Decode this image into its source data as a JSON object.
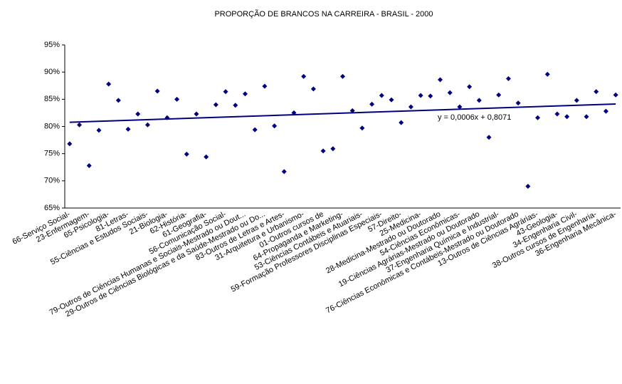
{
  "chart_data": {
    "type": "scatter",
    "title": "PROPORÇÃO DE BRANCOS NA CARREIRA - BRASIL - 2000",
    "categories": [
      "66-Serviço Social-",
      null,
      "23-Enfermagem-",
      null,
      "65-Psicologia-",
      null,
      "81-Letras-",
      null,
      "55-Ciências e Estudos Sociais-",
      null,
      "21-Biologia-",
      null,
      "62-História-",
      null,
      "61-Geografia-",
      null,
      "56-Comunicação Social-",
      null,
      "79-Outros de Ciências Humanas e Sociais-Mestrado ou Dout...",
      null,
      "29-Outros de Ciências Biológicas e da Saúde-Mestrado ou Do...",
      null,
      "83-Outros de Letras e Artes-",
      null,
      "31-Arquitetura e Urbanismo-",
      null,
      "01-Outros cursos de",
      null,
      "64-Propaganda e Marketing-",
      null,
      "53-Ciências Contábeis e Atuariais-",
      null,
      "59-Formação Professores Disciplinas Especiais-",
      null,
      "57-Direito-",
      null,
      "25-Medicina-",
      null,
      "28-Medicina-Mestrado ou Doutorado",
      null,
      "54-Ciências Econômicas-",
      null,
      "19-Ciências Agrárias-Mestrado ou Doutorado",
      null,
      "37-Engenharia Química e Industrial-",
      null,
      "76-Ciências Econômicas e Contábeis-Mestrado ou Doutorado",
      null,
      "13-Outros de Ciências Agrárias-",
      null,
      "43-Geologia-",
      null,
      "34-Engenharia Civil-",
      null,
      "38-Outros cursos de Engenharia-",
      null,
      "36-Engenharia Mecânica-"
    ],
    "values": [
      76.8,
      80.3,
      72.8,
      79.3,
      87.8,
      84.8,
      79.5,
      82.3,
      80.3,
      86.5,
      81.6,
      85.0,
      74.9,
      82.3,
      74.4,
      84.0,
      86.4,
      83.9,
      86.0,
      79.4,
      87.4,
      80.1,
      71.7,
      82.5,
      89.2,
      86.9,
      75.5,
      75.9,
      89.2,
      82.9,
      79.7,
      84.1,
      85.7,
      84.9,
      80.7,
      83.6,
      85.7,
      85.6,
      88.6,
      86.2,
      83.6,
      87.3,
      84.8,
      78.0,
      85.8,
      88.8,
      84.3,
      69.0,
      81.6,
      89.6,
      82.3,
      81.8,
      84.8,
      81.8,
      86.4,
      82.8,
      85.8
    ],
    "color": "#000080",
    "ylim": [
      65,
      95
    ],
    "yticks": [
      {
        "value": 65,
        "label": "65%"
      },
      {
        "value": 70,
        "label": "70%"
      },
      {
        "value": 75,
        "label": "75%"
      },
      {
        "value": 80,
        "label": "80%"
      },
      {
        "value": 85,
        "label": "85%"
      },
      {
        "value": 90,
        "label": "90%"
      },
      {
        "value": 95,
        "label": "95%"
      }
    ],
    "grid": false,
    "trendline": {
      "label": "y = 0,0006x + 0,8071",
      "slope": 0.06,
      "intercept": 80.71,
      "color": "#000080"
    }
  }
}
